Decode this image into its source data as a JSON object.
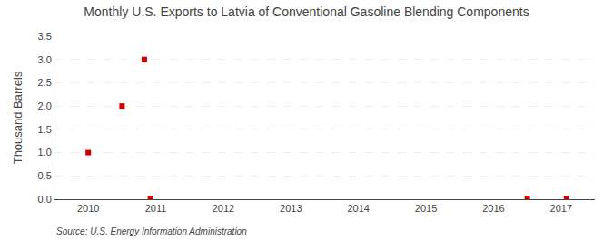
{
  "chart_data": {
    "type": "scatter",
    "title": "Monthly U.S. Exports to Latvia of Conventional Gasoline Blending Components",
    "y_label": "Thousand Barrels",
    "annotations": [
      "Source: U.S. Energy Information Administration"
    ],
    "x": [
      2010.0,
      2010.5,
      2010.83,
      2010.92,
      2016.5,
      2017.08
    ],
    "values": [
      1.0,
      2.0,
      3.0,
      0.02,
      0.02,
      0.02
    ],
    "color": "#cc0000",
    "marker": "square",
    "xlim": [
      2009.5,
      2017.5
    ],
    "xticks": [
      2010,
      2011,
      2012,
      2013,
      2014,
      2015,
      2016,
      2017
    ],
    "ylim": [
      0,
      3.5
    ],
    "yticks": [
      {
        "value": 0,
        "label": "0.0"
      },
      0.5,
      {
        "value": 1,
        "label": "1.0"
      },
      1.5,
      {
        "value": 2,
        "label": "2.0"
      },
      2.5,
      {
        "value": 3,
        "label": "3.0"
      },
      3.5
    ],
    "grid": true
  }
}
